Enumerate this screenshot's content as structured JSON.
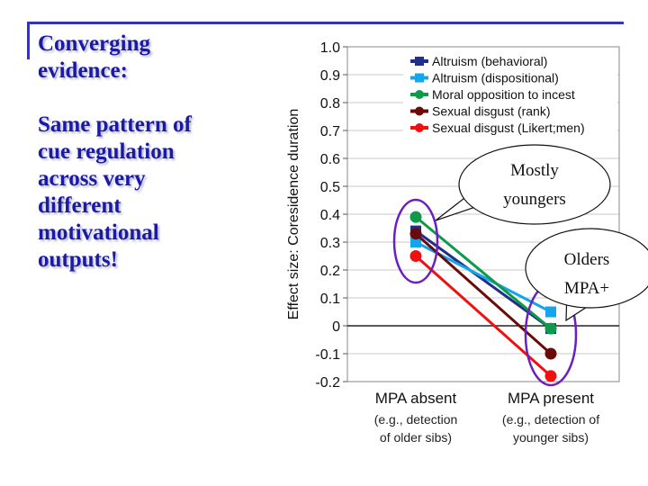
{
  "slide": {
    "title_lines": [
      "Converging",
      "evidence:"
    ],
    "body_lines": [
      "Same pattern of",
      "cue regulation",
      "across very",
      "different",
      "motivational",
      "outputs!"
    ],
    "accent_color": "#3434b8",
    "text_color": "#1a1aa6"
  },
  "chart_data": {
    "type": "line",
    "title": "",
    "xlabel": "",
    "ylabel": "Effect size: Coresidence duration",
    "ylim": [
      -0.2,
      1.0
    ],
    "yticks": [
      "1.0",
      "0.9",
      "0.8",
      "0.7",
      "0.6",
      "0.5",
      "0.4",
      "0.3",
      "0.2",
      "0.1",
      "0",
      "-0.1",
      "-0.2"
    ],
    "ytick_values": [
      1.0,
      0.9,
      0.8,
      0.7,
      0.6,
      0.5,
      0.4,
      0.3,
      0.2,
      0.1,
      0,
      -0.1,
      -0.2
    ],
    "grid": true,
    "legend_position": "top-right",
    "categories": [
      {
        "label": "MPA absent",
        "sub": [
          "(e.g., detection",
          "of older sibs)"
        ]
      },
      {
        "label": "MPA present",
        "sub": [
          "(e.g., detection of",
          "younger sibs)"
        ]
      }
    ],
    "series": [
      {
        "name": "Altruism (behavioral)",
        "color": "#1f2f8a",
        "marker": "square",
        "values": [
          0.34,
          -0.01
        ]
      },
      {
        "name": "Altruism (dispositional)",
        "color": "#14a5ea",
        "marker": "square",
        "values": [
          0.3,
          0.05
        ]
      },
      {
        "name": "Moral opposition to incest",
        "color": "#0e9a4a",
        "marker": "circle",
        "values": [
          0.39,
          -0.01
        ]
      },
      {
        "name": "Sexual disgust (rank)",
        "color": "#6b0a0a",
        "marker": "circle",
        "values": [
          0.33,
          -0.1
        ]
      },
      {
        "name": "Sexual disgust (Likert;men)",
        "color": "#f01010",
        "marker": "circle",
        "values": [
          0.25,
          -0.18
        ]
      }
    ],
    "annotations": [
      {
        "text_lines": [
          "Mostly",
          "youngers"
        ],
        "target_category": "MPA absent"
      },
      {
        "text_lines": [
          "Olders",
          "MPA+"
        ],
        "target_category": "MPA present"
      }
    ],
    "highlight_color": "#6a1fc0"
  }
}
